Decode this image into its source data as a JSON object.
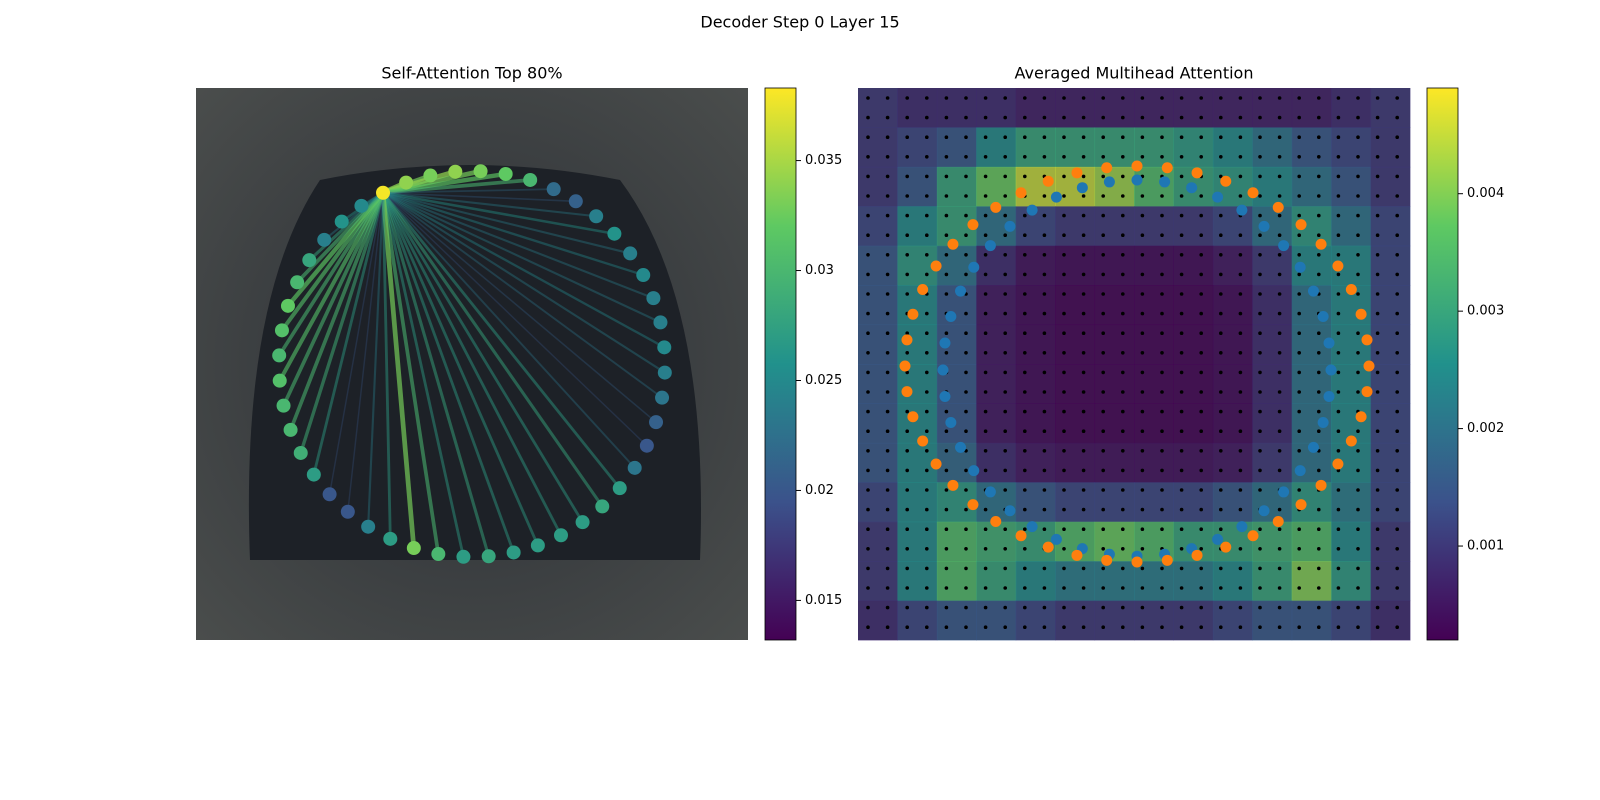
{
  "chart_data": [
    {
      "type": "self-attention",
      "title": "Self-Attention Top 80%",
      "query": 0,
      "values": [
        0.038,
        0.034,
        0.033,
        0.034,
        0.033,
        0.032,
        0.03,
        0.022,
        0.021,
        0.024,
        0.026,
        0.024,
        0.025,
        0.024,
        0.024,
        0.025,
        0.024,
        0.023,
        0.021,
        0.02,
        0.023,
        0.027,
        0.028,
        0.027,
        0.027,
        0.027,
        0.027,
        0.028,
        0.027,
        0.03,
        0.033,
        0.027,
        0.024,
        0.02,
        0.02,
        0.027,
        0.029,
        0.03,
        0.03,
        0.031,
        0.03,
        0.031,
        0.032,
        0.03,
        0.028,
        0.024,
        0.026,
        0.025
      ],
      "clim": [
        0.0132,
        0.0383
      ],
      "cticks": [
        0.015,
        0.02,
        0.025,
        0.03,
        0.035
      ]
    },
    {
      "type": "heatmap",
      "title": "Averaged Multihead Attention",
      "values": [
        [
          0.001,
          0.0008,
          0.0008,
          0.0008,
          0.0006,
          0.0006,
          0.0006,
          0.0006,
          0.0006,
          0.0006,
          0.0006,
          0.0006,
          0.0008,
          0.001
        ],
        [
          0.001,
          0.0012,
          0.0015,
          0.0025,
          0.003,
          0.003,
          0.003,
          0.003,
          0.0028,
          0.0025,
          0.002,
          0.0015,
          0.0012,
          0.001
        ],
        [
          0.001,
          0.0015,
          0.003,
          0.0038,
          0.0045,
          0.0045,
          0.0042,
          0.0035,
          0.003,
          0.0028,
          0.0025,
          0.002,
          0.0015,
          0.001
        ],
        [
          0.0012,
          0.0025,
          0.003,
          0.002,
          0.0012,
          0.001,
          0.001,
          0.001,
          0.001,
          0.0012,
          0.002,
          0.0028,
          0.002,
          0.0012
        ],
        [
          0.0015,
          0.0028,
          0.002,
          0.0008,
          0.0004,
          0.0003,
          0.0003,
          0.0003,
          0.0003,
          0.0005,
          0.001,
          0.0025,
          0.0025,
          0.0012
        ],
        [
          0.0015,
          0.0025,
          0.0015,
          0.0005,
          0.0003,
          0.0002,
          0.0002,
          0.0002,
          0.0002,
          0.0003,
          0.0008,
          0.002,
          0.0025,
          0.0012
        ],
        [
          0.0015,
          0.0025,
          0.0015,
          0.0005,
          0.0003,
          0.0002,
          0.0002,
          0.0002,
          0.0002,
          0.0003,
          0.0008,
          0.002,
          0.0025,
          0.0012
        ],
        [
          0.0015,
          0.0025,
          0.0015,
          0.0005,
          0.0003,
          0.0002,
          0.0002,
          0.0002,
          0.0002,
          0.0003,
          0.0008,
          0.002,
          0.0025,
          0.0012
        ],
        [
          0.0015,
          0.0025,
          0.0015,
          0.0005,
          0.0003,
          0.0002,
          0.0002,
          0.0002,
          0.0002,
          0.0003,
          0.0008,
          0.002,
          0.0025,
          0.0012
        ],
        [
          0.0015,
          0.0025,
          0.0018,
          0.0008,
          0.0005,
          0.0004,
          0.0004,
          0.0004,
          0.0004,
          0.0005,
          0.001,
          0.002,
          0.0025,
          0.0012
        ],
        [
          0.0012,
          0.0025,
          0.0028,
          0.002,
          0.0015,
          0.0012,
          0.0012,
          0.0012,
          0.0012,
          0.0015,
          0.002,
          0.0028,
          0.0022,
          0.0012
        ],
        [
          0.001,
          0.0025,
          0.0035,
          0.0032,
          0.003,
          0.0035,
          0.0038,
          0.0035,
          0.003,
          0.003,
          0.0032,
          0.0035,
          0.0025,
          0.001
        ],
        [
          0.001,
          0.0025,
          0.0035,
          0.003,
          0.0025,
          0.0022,
          0.0022,
          0.0022,
          0.0022,
          0.0025,
          0.003,
          0.004,
          0.0028,
          0.001
        ],
        [
          0.0008,
          0.0012,
          0.0015,
          0.0015,
          0.0012,
          0.001,
          0.001,
          0.001,
          0.001,
          0.0012,
          0.0015,
          0.0015,
          0.0012,
          0.0008
        ]
      ],
      "clim": [
        0.0002,
        0.0049
      ],
      "cticks": [
        0.001,
        0.002,
        0.003,
        0.004
      ]
    }
  ],
  "suptitle": "Decoder Step 0 Layer 15"
}
